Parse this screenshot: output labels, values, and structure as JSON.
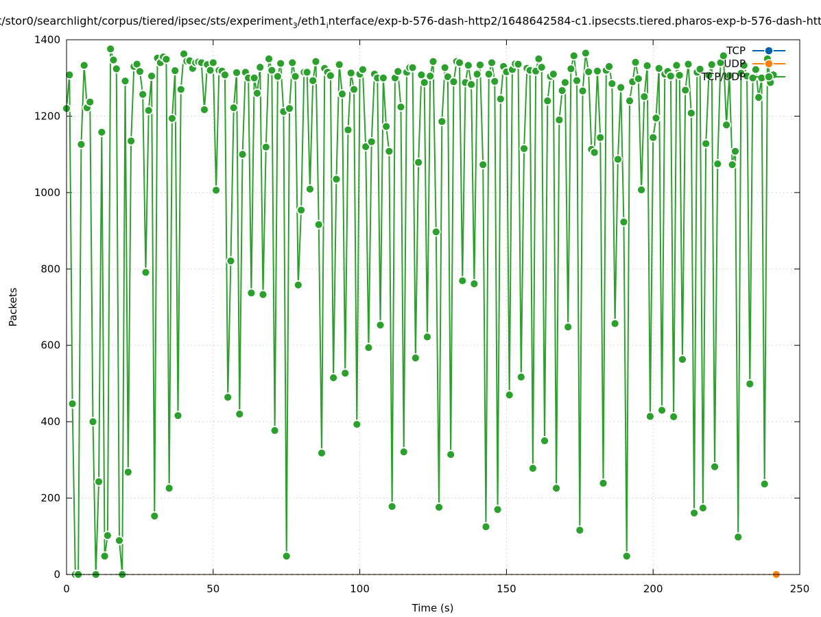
{
  "chart_data": {
    "type": "line",
    "title_parts": [
      "t/stor0/searchlight/corpus/tiered/ipsec/sts/experiment",
      "3",
      "/eth1",
      "i",
      "nterface/exp-b-576-dash-http2/1648642584-c1.ipsecsts.tiered.pharos-exp-b-576-dash-htt"
    ],
    "xlabel": "Time (s)",
    "ylabel": "Packets",
    "xlim": [
      0,
      250
    ],
    "ylim": [
      0,
      1400
    ],
    "xticks": [
      0,
      50,
      100,
      150,
      200,
      250
    ],
    "yticks": [
      0,
      200,
      400,
      600,
      800,
      1000,
      1200,
      1400
    ],
    "grid": true,
    "legend_position": "top-right",
    "series": [
      {
        "name": "TCP",
        "color": "#0060ad",
        "x": [
          242
        ],
        "values": [
          0
        ]
      },
      {
        "name": "UDP",
        "color": "#ff7f0e",
        "x": [
          242
        ],
        "values": [
          0
        ]
      },
      {
        "name": "TCP/UDP",
        "color": "#2ca02c",
        "x_start": 0,
        "x_step": 1,
        "values": [
          1220,
          1308,
          447,
          0,
          0,
          1126,
          1333,
          1222,
          1237,
          400,
          0,
          243,
          1158,
          48,
          102,
          1376,
          1347,
          1324,
          89,
          0,
          1292,
          268,
          1135,
          1330,
          1336,
          1317,
          1257,
          791,
          1215,
          1305,
          153,
          1352,
          1340,
          1355,
          1349,
          226,
          1194,
          1319,
          416,
          1270,
          1363,
          1344,
          1345,
          1325,
          1340,
          1342,
          1340,
          1217,
          1335,
          1320,
          1340,
          1006,
          1320,
          1318,
          1308,
          464,
          821,
          1222,
          1314,
          420,
          1100,
          1315,
          1300,
          737,
          1300,
          1260,
          1328,
          733,
          1119,
          1350,
          1320,
          377,
          1304,
          1338,
          1212,
          48,
          1220,
          1340,
          1304,
          758,
          954,
          1315,
          1315,
          1009,
          1293,
          1343,
          916,
          318,
          1325,
          1315,
          1306,
          515,
          1035,
          1335,
          1258,
          527,
          1164,
          1313,
          1270,
          393,
          1310,
          1322,
          1120,
          594,
          1133,
          1310,
          1300,
          653,
          1300,
          1173,
          1108,
          178,
          1300,
          1317,
          1224,
          321,
          1315,
          1327,
          1327,
          567,
          1079,
          1308,
          1288,
          622,
          1305,
          1343,
          897,
          176,
          1186,
          1327,
          1303,
          314,
          1290,
          1343,
          1340,
          769,
          1288,
          1333,
          1283,
          761,
          1310,
          1334,
          1073,
          125,
          1310,
          1340,
          1291,
          170,
          1245,
          1330,
          1316,
          470,
          1322,
          1337,
          1336,
          517,
          1115,
          1325,
          1320,
          278,
          1318,
          1350,
          1328,
          350,
          1240,
          1304,
          1310,
          226,
          1190,
          1267,
          1288,
          648,
          1324,
          1358,
          1293,
          116,
          1266,
          1365,
          1316,
          1113,
          1105,
          1318,
          1144,
          239,
          1320,
          1330,
          1285,
          657,
          1087,
          1275,
          923,
          48,
          1240,
          1290,
          1341,
          1298,
          1007,
          1251,
          1332,
          414,
          1144,
          1195,
          1325,
          430,
          1310,
          1317,
          1305,
          413,
          1333,
          1307,
          563,
          1268,
          1336,
          1208,
          161,
          1315,
          1323,
          174,
          1128,
          1307,
          1335,
          282,
          1075,
          1340,
          1358,
          1177,
          1306,
          1073,
          1108,
          98,
          1312,
          1333,
          1305,
          499,
          1300,
          1322,
          1249,
          1300,
          237,
          1350,
          1288,
          1308
        ]
      }
    ]
  }
}
